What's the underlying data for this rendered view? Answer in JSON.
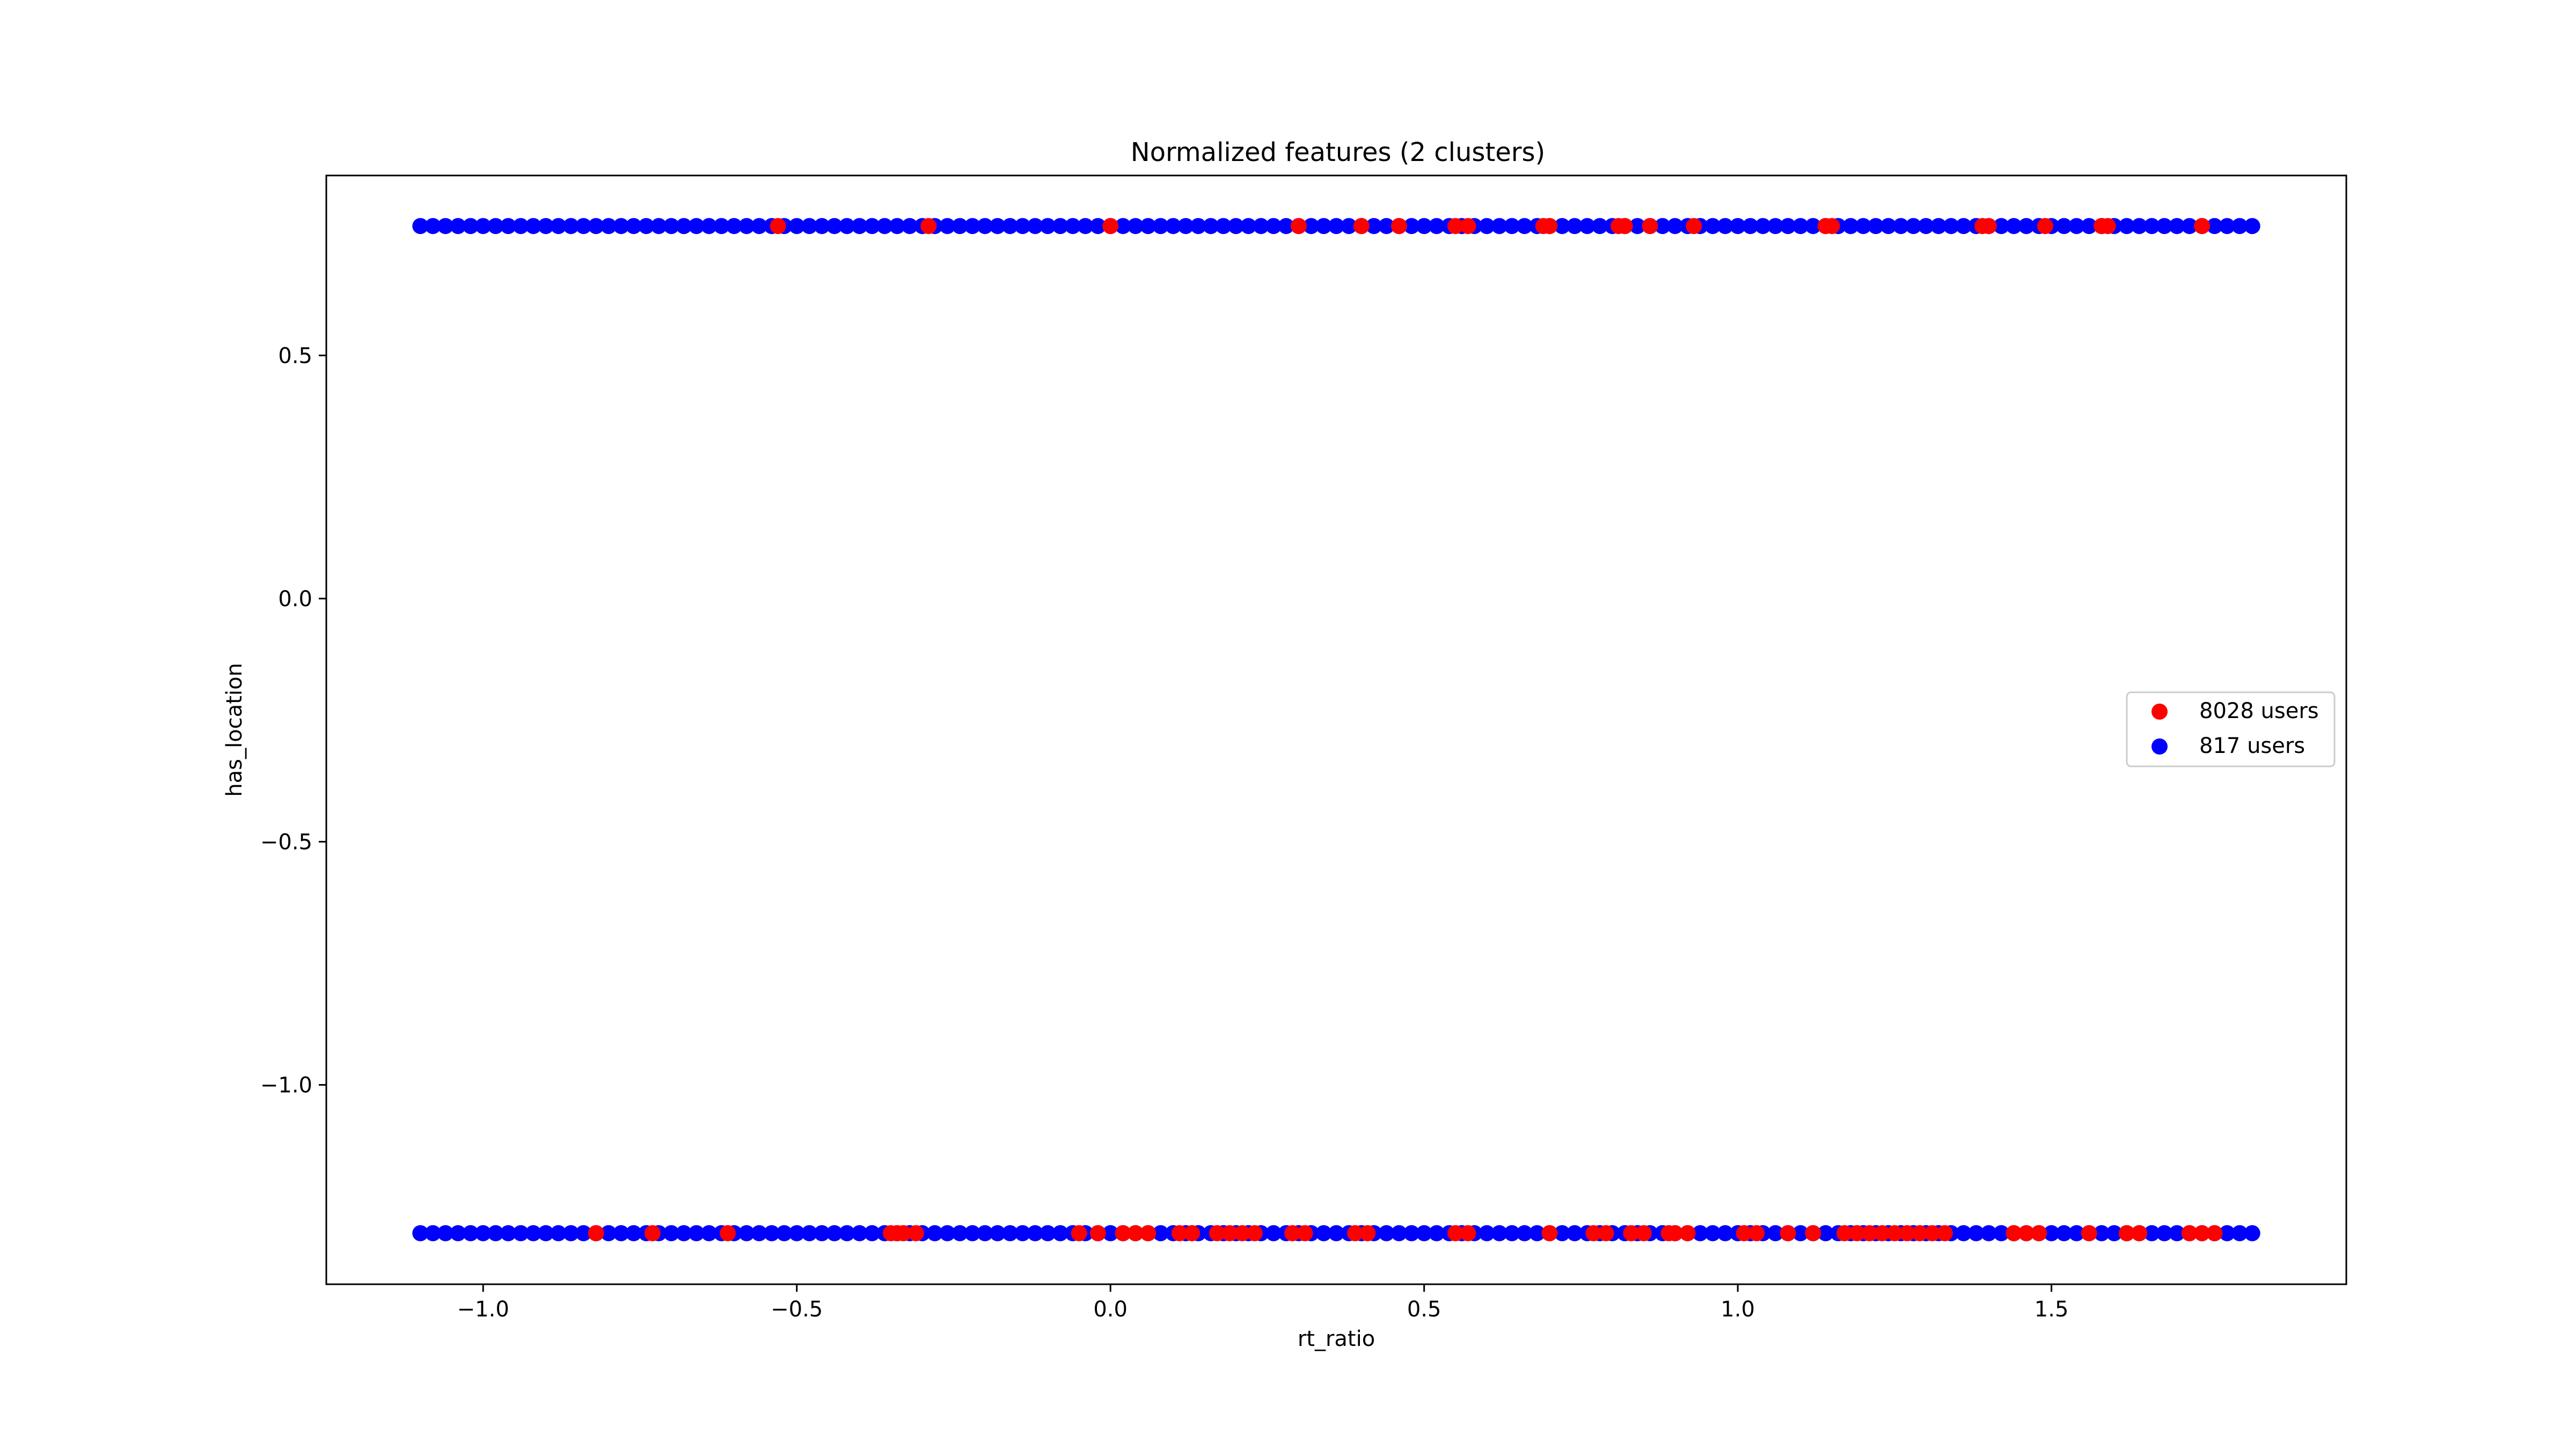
{
  "chart_data": {
    "type": "scatter",
    "title": "Normalized features (2 clusters)",
    "xlabel": "rt_ratio",
    "ylabel": "has_location",
    "xlim": [
      -1.25,
      1.97
    ],
    "ylim": [
      -1.41,
      0.87
    ],
    "xticks": [
      -1.0,
      -0.5,
      0.0,
      0.5,
      1.0,
      1.5
    ],
    "xtick_labels": [
      "−1.0",
      "−0.5",
      "0.0",
      "0.5",
      "1.0",
      "1.5"
    ],
    "yticks": [
      0.5,
      0.0,
      -0.5,
      -1.0
    ],
    "ytick_labels": [
      "0.5",
      "0.0",
      "−0.5",
      "−1.0"
    ],
    "grid": false,
    "legend_position": "center-right",
    "series": [
      {
        "name": "8028 users",
        "color": "#ff0000",
        "points": [
          {
            "x": -0.53,
            "y": 0.766
          },
          {
            "x": -0.29,
            "y": 0.766
          },
          {
            "x": 0.0,
            "y": 0.766
          },
          {
            "x": 0.3,
            "y": 0.766
          },
          {
            "x": 0.4,
            "y": 0.766
          },
          {
            "x": 0.46,
            "y": 0.766
          },
          {
            "x": 0.55,
            "y": 0.766
          },
          {
            "x": 0.57,
            "y": 0.766
          },
          {
            "x": 0.69,
            "y": 0.766
          },
          {
            "x": 0.7,
            "y": 0.766
          },
          {
            "x": 0.81,
            "y": 0.766
          },
          {
            "x": 0.82,
            "y": 0.766
          },
          {
            "x": 0.86,
            "y": 0.766
          },
          {
            "x": 0.93,
            "y": 0.766
          },
          {
            "x": 1.14,
            "y": 0.766
          },
          {
            "x": 1.15,
            "y": 0.766
          },
          {
            "x": 1.39,
            "y": 0.766
          },
          {
            "x": 1.4,
            "y": 0.766
          },
          {
            "x": 1.49,
            "y": 0.766
          },
          {
            "x": 1.58,
            "y": 0.766
          },
          {
            "x": 1.59,
            "y": 0.766
          },
          {
            "x": 1.74,
            "y": 0.766
          },
          {
            "x": -0.82,
            "y": -1.305
          },
          {
            "x": -0.73,
            "y": -1.305
          },
          {
            "x": -0.61,
            "y": -1.305
          },
          {
            "x": -0.35,
            "y": -1.305
          },
          {
            "x": -0.34,
            "y": -1.305
          },
          {
            "x": -0.33,
            "y": -1.305
          },
          {
            "x": -0.31,
            "y": -1.305
          },
          {
            "x": -0.05,
            "y": -1.305
          },
          {
            "x": -0.02,
            "y": -1.305
          },
          {
            "x": 0.02,
            "y": -1.305
          },
          {
            "x": 0.04,
            "y": -1.305
          },
          {
            "x": 0.06,
            "y": -1.305
          },
          {
            "x": 0.11,
            "y": -1.305
          },
          {
            "x": 0.13,
            "y": -1.305
          },
          {
            "x": 0.17,
            "y": -1.305
          },
          {
            "x": 0.19,
            "y": -1.305
          },
          {
            "x": 0.21,
            "y": -1.305
          },
          {
            "x": 0.23,
            "y": -1.305
          },
          {
            "x": 0.29,
            "y": -1.305
          },
          {
            "x": 0.31,
            "y": -1.305
          },
          {
            "x": 0.39,
            "y": -1.305
          },
          {
            "x": 0.41,
            "y": -1.305
          },
          {
            "x": 0.55,
            "y": -1.305
          },
          {
            "x": 0.57,
            "y": -1.305
          },
          {
            "x": 0.7,
            "y": -1.305
          },
          {
            "x": 0.77,
            "y": -1.305
          },
          {
            "x": 0.79,
            "y": -1.305
          },
          {
            "x": 0.83,
            "y": -1.305
          },
          {
            "x": 0.85,
            "y": -1.305
          },
          {
            "x": 0.89,
            "y": -1.305
          },
          {
            "x": 0.9,
            "y": -1.305
          },
          {
            "x": 0.92,
            "y": -1.305
          },
          {
            "x": 1.01,
            "y": -1.305
          },
          {
            "x": 1.03,
            "y": -1.305
          },
          {
            "x": 1.08,
            "y": -1.305
          },
          {
            "x": 1.12,
            "y": -1.305
          },
          {
            "x": 1.17,
            "y": -1.305
          },
          {
            "x": 1.19,
            "y": -1.305
          },
          {
            "x": 1.21,
            "y": -1.305
          },
          {
            "x": 1.23,
            "y": -1.305
          },
          {
            "x": 1.25,
            "y": -1.305
          },
          {
            "x": 1.27,
            "y": -1.305
          },
          {
            "x": 1.29,
            "y": -1.305
          },
          {
            "x": 1.31,
            "y": -1.305
          },
          {
            "x": 1.33,
            "y": -1.305
          },
          {
            "x": 1.44,
            "y": -1.305
          },
          {
            "x": 1.46,
            "y": -1.305
          },
          {
            "x": 1.48,
            "y": -1.305
          },
          {
            "x": 1.56,
            "y": -1.305
          },
          {
            "x": 1.62,
            "y": -1.305
          },
          {
            "x": 1.64,
            "y": -1.305
          },
          {
            "x": 1.72,
            "y": -1.305
          },
          {
            "x": 1.74,
            "y": -1.305
          },
          {
            "x": 1.76,
            "y": -1.305
          }
        ]
      },
      {
        "name": "817 users",
        "color": "#0000ff",
        "x_range": [
          -1.1,
          1.83
        ],
        "y_values": [
          0.766,
          -1.305
        ]
      }
    ]
  }
}
